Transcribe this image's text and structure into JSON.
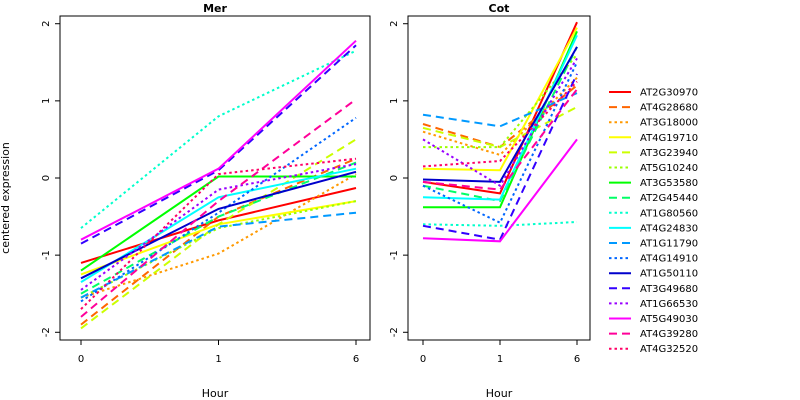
{
  "chart_data": {
    "type": "line",
    "ylabel": "centered expression",
    "xlabel": "Hour",
    "x_categories": [
      "0",
      "1",
      "6"
    ],
    "ylim": [
      -2.1,
      2.1
    ],
    "yticks": [
      -2,
      -1,
      0,
      1,
      2
    ],
    "panels": [
      {
        "title": "Mer",
        "series": [
          {
            "name": "AT2G30970",
            "color": "#ff0000",
            "dash": "solid",
            "values": [
              -1.1,
              -0.55,
              -0.13
            ]
          },
          {
            "name": "AT4G28680",
            "color": "#ff6600",
            "dash": "dashed",
            "values": [
              -1.9,
              -0.5,
              0.25
            ]
          },
          {
            "name": "AT3G18000",
            "color": "#ff9900",
            "dash": "dotted",
            "values": [
              -1.55,
              -0.98,
              0.05
            ]
          },
          {
            "name": "AT4G19710",
            "color": "#ffff00",
            "dash": "solid",
            "values": [
              -1.25,
              -0.6,
              -0.3
            ]
          },
          {
            "name": "AT3G23940",
            "color": "#ccff00",
            "dash": "dashed",
            "values": [
              -1.95,
              -0.6,
              0.5
            ]
          },
          {
            "name": "AT5G10240",
            "color": "#99ff00",
            "dash": "dotted",
            "values": [
              -1.55,
              -0.65,
              -0.3
            ]
          },
          {
            "name": "AT3G53580",
            "color": "#00ff00",
            "dash": "solid",
            "values": [
              -1.2,
              0.02,
              0.02
            ]
          },
          {
            "name": "AT2G45440",
            "color": "#00ff66",
            "dash": "dashed",
            "values": [
              -1.5,
              -0.5,
              0.2
            ]
          },
          {
            "name": "AT1G80560",
            "color": "#00ffcc",
            "dash": "dotted",
            "values": [
              -0.65,
              0.8,
              1.65
            ]
          },
          {
            "name": "AT4G24830",
            "color": "#00ffff",
            "dash": "solid",
            "values": [
              -1.35,
              -0.25,
              0.12
            ]
          },
          {
            "name": "AT1G11790",
            "color": "#0099ff",
            "dash": "dashed",
            "values": [
              -1.55,
              -0.63,
              -0.45
            ]
          },
          {
            "name": "AT4G14910",
            "color": "#0066ff",
            "dash": "dotted",
            "values": [
              -1.6,
              -0.45,
              0.78
            ]
          },
          {
            "name": "AT1G50110",
            "color": "#0000cc",
            "dash": "solid",
            "values": [
              -1.3,
              -0.4,
              0.08
            ]
          },
          {
            "name": "AT3G49680",
            "color": "#3300ff",
            "dash": "dashed",
            "values": [
              -0.85,
              0.1,
              1.72
            ]
          },
          {
            "name": "AT1G66530",
            "color": "#9900ff",
            "dash": "dotted",
            "values": [
              -1.45,
              -0.15,
              0.18
            ]
          },
          {
            "name": "AT5G49030",
            "color": "#ff00ff",
            "dash": "solid",
            "values": [
              -0.8,
              0.12,
              1.78
            ]
          },
          {
            "name": "AT4G39280",
            "color": "#ff0099",
            "dash": "dashed",
            "values": [
              -1.8,
              -0.3,
              1.02
            ]
          },
          {
            "name": "AT4G32520",
            "color": "#ff0066",
            "dash": "dotted",
            "values": [
              -1.7,
              0.05,
              0.25
            ]
          }
        ]
      },
      {
        "title": "Cot",
        "series": [
          {
            "name": "AT2G30970",
            "color": "#ff0000",
            "dash": "solid",
            "values": [
              -0.05,
              -0.2,
              2.02
            ]
          },
          {
            "name": "AT4G28680",
            "color": "#ff6600",
            "dash": "dashed",
            "values": [
              0.7,
              0.4,
              1.2
            ]
          },
          {
            "name": "AT3G18000",
            "color": "#ff9900",
            "dash": "dotted",
            "values": [
              0.6,
              0.3,
              1.3
            ]
          },
          {
            "name": "AT4G19710",
            "color": "#ffff00",
            "dash": "solid",
            "values": [
              0.12,
              0.1,
              1.95
            ]
          },
          {
            "name": "AT3G23940",
            "color": "#ccff00",
            "dash": "dashed",
            "values": [
              0.65,
              0.4,
              0.92
            ]
          },
          {
            "name": "AT5G10240",
            "color": "#99ff00",
            "dash": "dotted",
            "values": [
              0.4,
              0.4,
              1.6
            ]
          },
          {
            "name": "AT3G53580",
            "color": "#00ff00",
            "dash": "solid",
            "values": [
              -0.38,
              -0.38,
              1.9
            ]
          },
          {
            "name": "AT2G45440",
            "color": "#00ff66",
            "dash": "dashed",
            "values": [
              -0.1,
              -0.3,
              1.7
            ]
          },
          {
            "name": "AT1G80560",
            "color": "#00ffcc",
            "dash": "dotted",
            "values": [
              -0.6,
              -0.62,
              -0.57
            ]
          },
          {
            "name": "AT4G24830",
            "color": "#00ffff",
            "dash": "solid",
            "values": [
              -0.25,
              -0.28,
              1.85
            ]
          },
          {
            "name": "AT1G11790",
            "color": "#0099ff",
            "dash": "dashed",
            "values": [
              0.82,
              0.67,
              1.1
            ]
          },
          {
            "name": "AT4G14910",
            "color": "#0066ff",
            "dash": "dotted",
            "values": [
              -0.1,
              -0.58,
              1.5
            ]
          },
          {
            "name": "AT1G50110",
            "color": "#0000cc",
            "dash": "solid",
            "values": [
              -0.02,
              -0.05,
              1.7
            ]
          },
          {
            "name": "AT3G49680",
            "color": "#3300ff",
            "dash": "dashed",
            "values": [
              -0.62,
              -0.8,
              1.35
            ]
          },
          {
            "name": "AT1G66530",
            "color": "#9900ff",
            "dash": "dotted",
            "values": [
              0.5,
              -0.1,
              1.55
            ]
          },
          {
            "name": "AT5G49030",
            "color": "#ff00ff",
            "dash": "solid",
            "values": [
              -0.78,
              -0.82,
              0.5
            ]
          },
          {
            "name": "AT4G39280",
            "color": "#ff0099",
            "dash": "dashed",
            "values": [
              -0.05,
              -0.15,
              1.15
            ]
          },
          {
            "name": "AT4G32520",
            "color": "#ff0066",
            "dash": "dotted",
            "values": [
              0.15,
              0.22,
              1.25
            ]
          }
        ]
      }
    ]
  }
}
